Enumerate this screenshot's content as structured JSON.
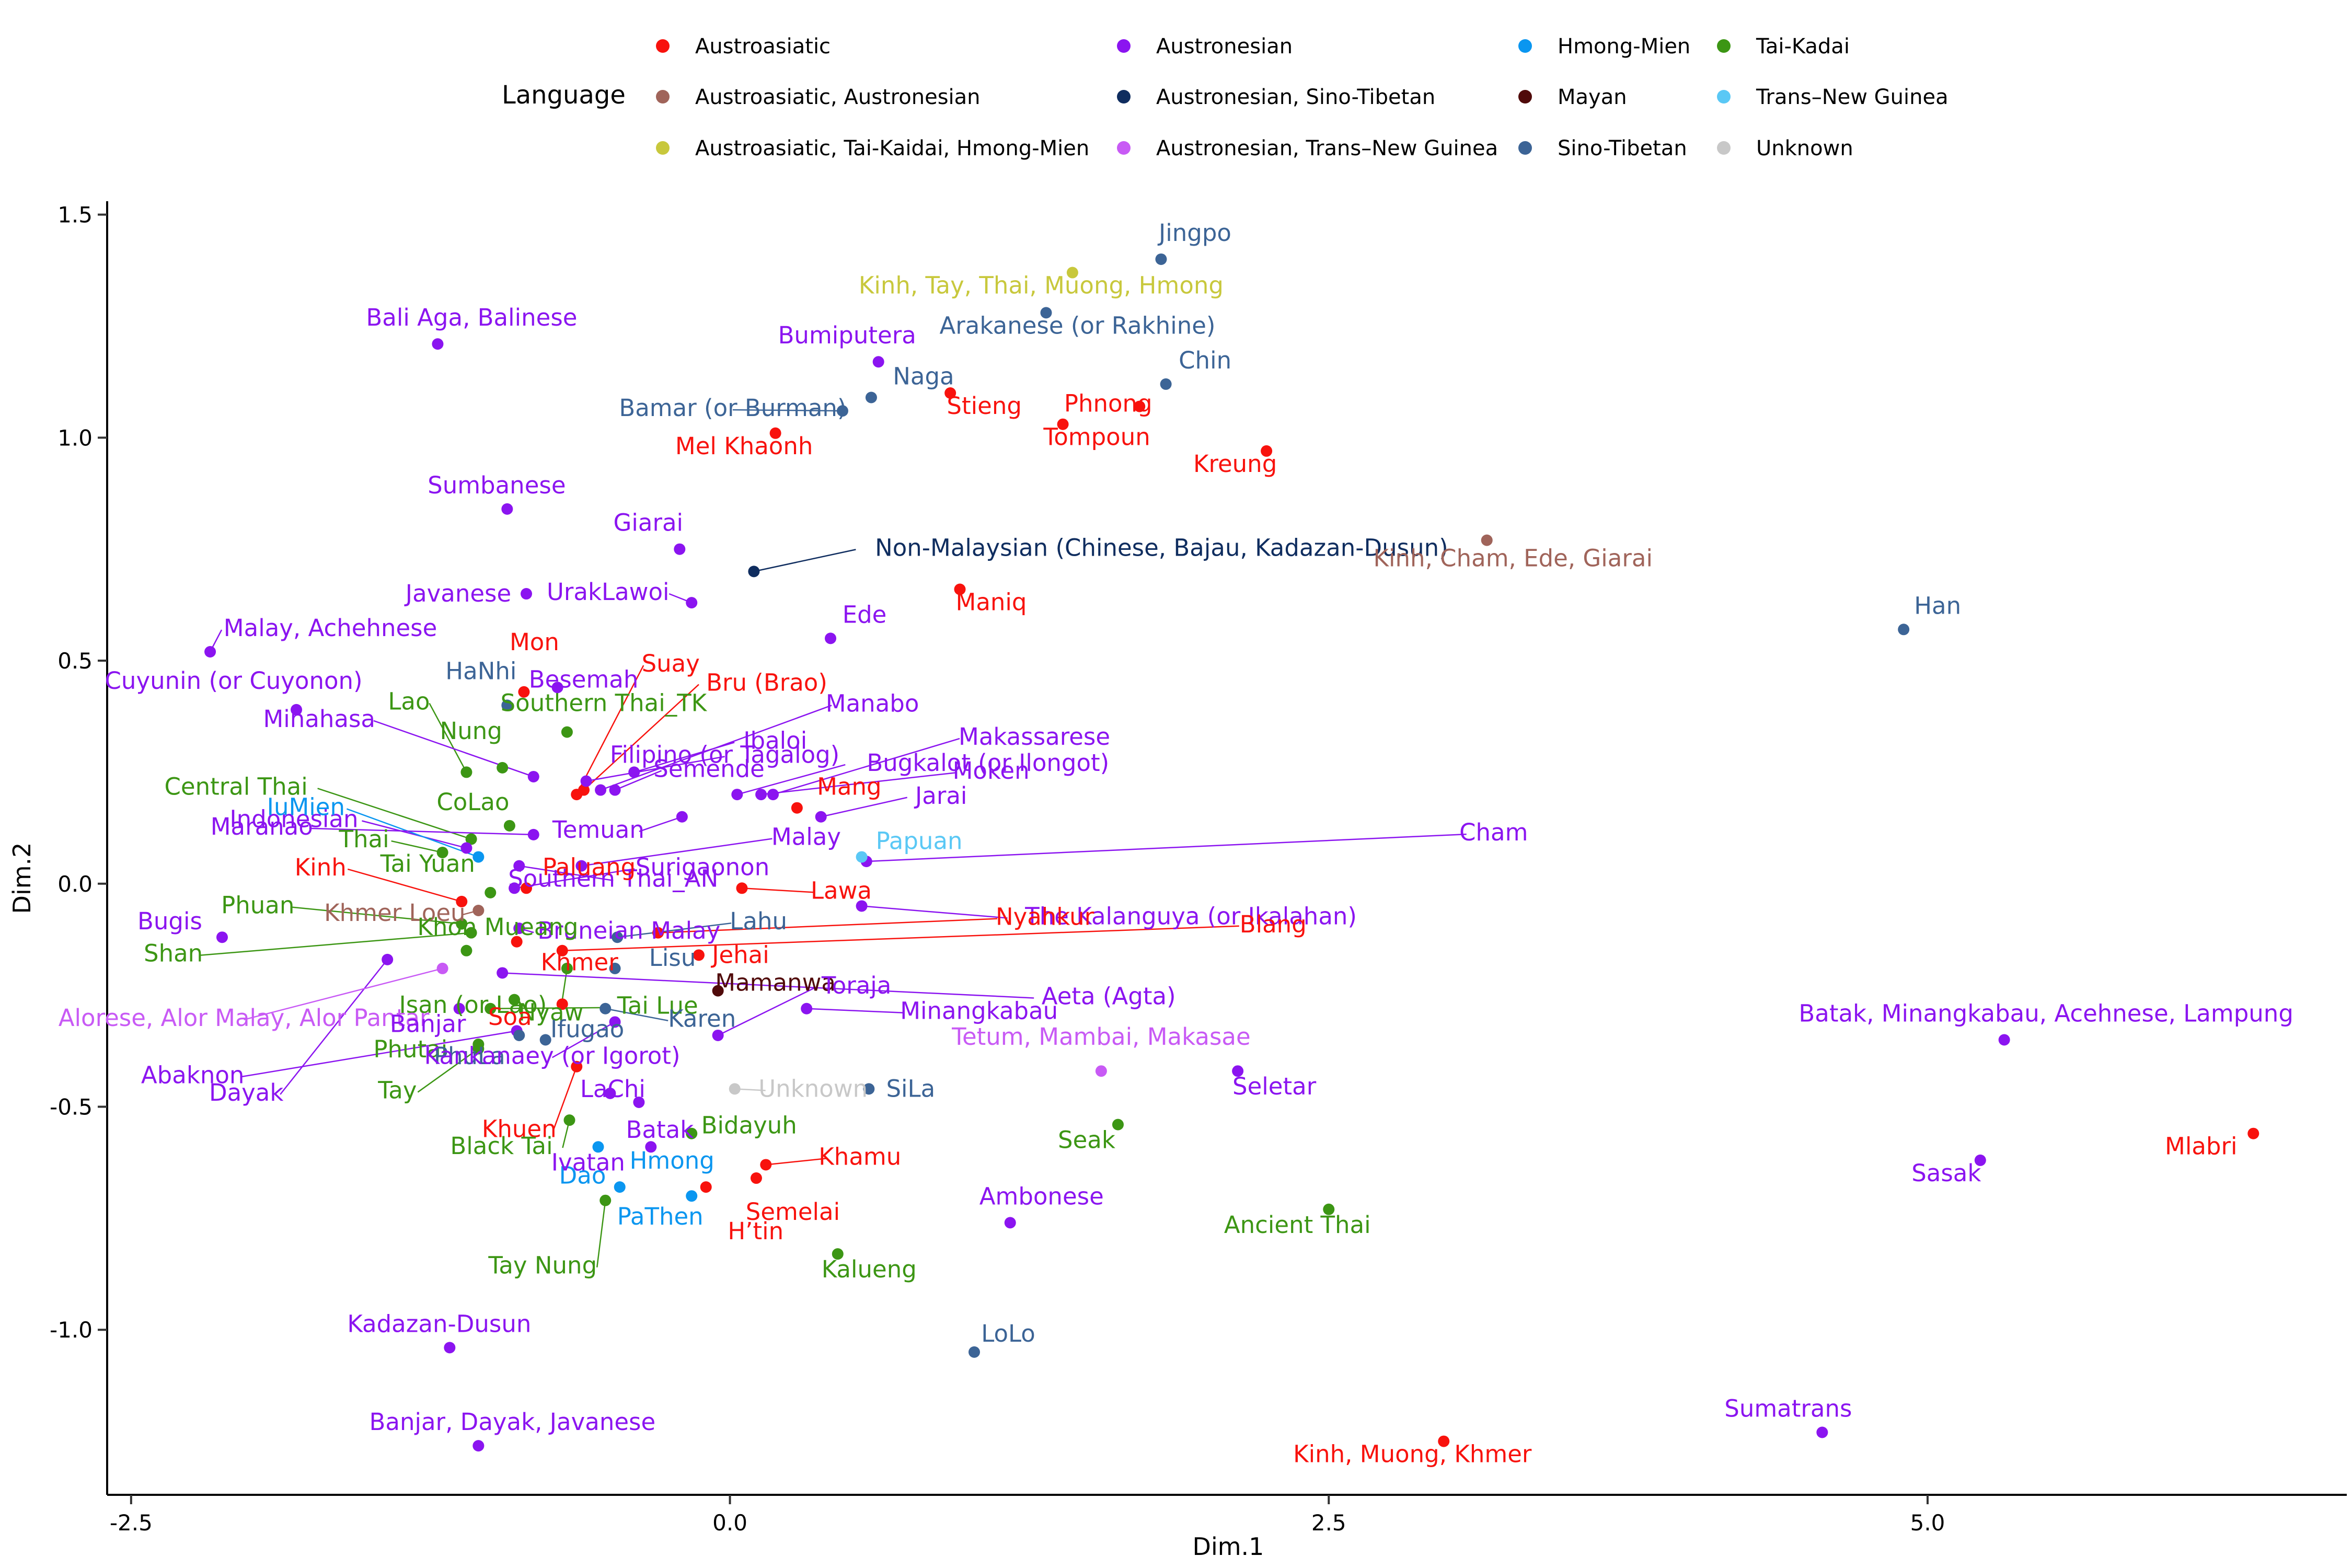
{
  "chart_data": {
    "type": "scatter",
    "xlabel": "Dim.1",
    "ylabel": "Dim.2",
    "xlim": [
      -2.6,
      6.75
    ],
    "ylim": [
      -1.37,
      1.53
    ],
    "xticks": [
      -2.5,
      0.0,
      2.5,
      5.0
    ],
    "xtick_labels": [
      "-2.5",
      "0.0",
      "2.5",
      "5.0"
    ],
    "yticks": [
      -1.0,
      -0.5,
      0.0,
      0.5,
      1.0,
      1.5
    ],
    "ytick_labels": [
      "-1.0",
      "-0.5",
      "0.0",
      "0.5",
      "1.0",
      "1.5"
    ],
    "grid": false,
    "legend": {
      "title": "Language",
      "placement": "top",
      "entries": [
        {
          "name": "Austroasiatic",
          "color": "#F8120D"
        },
        {
          "name": "Austroasiatic, Austronesian",
          "color": "#A0645A"
        },
        {
          "name": "Austroasiatic, Tai-Kaidai, Hmong-Mien",
          "color": "#C8C83C"
        },
        {
          "name": "Austronesian",
          "color": "#8B14F0"
        },
        {
          "name": "Austronesian, Sino-Tibetan",
          "color": "#0F2D5F"
        },
        {
          "name": "Austronesian, Trans–New Guinea",
          "color": "#C85AF5"
        },
        {
          "name": "Hmong-Mien",
          "color": "#0A96F0"
        },
        {
          "name": "Mayan",
          "color": "#500A0A"
        },
        {
          "name": "Sino-Tibetan",
          "color": "#3C6496"
        },
        {
          "name": "Tai-Kadai",
          "color": "#3C9614"
        },
        {
          "name": "Trans–New Guinea",
          "color": "#5AC8F5"
        },
        {
          "name": "Unknown",
          "color": "#C8C8C8"
        }
      ]
    },
    "points": [
      {
        "label": "Jingpo",
        "x": 1.8,
        "y": 1.4,
        "group": 8
      },
      {
        "label": "Kinh, Tay, Thai, Muong, Hmong",
        "x": 1.43,
        "y": 1.37,
        "group": 2
      },
      {
        "label": "Arakanese (or Rakhine)",
        "x": 1.32,
        "y": 1.28,
        "group": 8
      },
      {
        "label": "Chin",
        "x": 1.82,
        "y": 1.12,
        "group": 8
      },
      {
        "label": "Phnong",
        "x": 1.71,
        "y": 1.07,
        "group": 0
      },
      {
        "label": "Tompoun",
        "x": 1.39,
        "y": 1.03,
        "group": 0
      },
      {
        "label": "Kreung",
        "x": 2.24,
        "y": 0.97,
        "group": 0
      },
      {
        "label": "Stieng",
        "x": 0.92,
        "y": 1.1,
        "group": 0
      },
      {
        "label": "Naga",
        "x": 0.59,
        "y": 1.09,
        "group": 8
      },
      {
        "label": "Bamar (or Burman)",
        "x": 0.47,
        "y": 1.06,
        "group": 8
      },
      {
        "label": "Mel Khaonh",
        "x": 0.19,
        "y": 1.01,
        "group": 0
      },
      {
        "label": "Bumiputera",
        "x": 0.62,
        "y": 1.17,
        "group": 3
      },
      {
        "label": "Bali Aga, Balinese",
        "x": -1.22,
        "y": 1.21,
        "group": 3
      },
      {
        "label": "Sumbanese",
        "x": -0.93,
        "y": 0.84,
        "group": 3
      },
      {
        "label": "Giarai",
        "x": -0.21,
        "y": 0.75,
        "group": 3
      },
      {
        "label": "Non-Malaysian (Chinese, Bajau, Kadazan-Dusun)",
        "x": 0.1,
        "y": 0.7,
        "group": 4
      },
      {
        "label": "Kinh, Cham, Ede, Giarai",
        "x": 3.16,
        "y": 0.77,
        "group": 1
      },
      {
        "label": "Han",
        "x": 4.9,
        "y": 0.57,
        "group": 8
      },
      {
        "label": "Javanese",
        "x": -0.85,
        "y": 0.65,
        "group": 3
      },
      {
        "label": "UrakLawoi",
        "x": -0.16,
        "y": 0.63,
        "group": 3
      },
      {
        "label": "Maniq",
        "x": 0.96,
        "y": 0.66,
        "group": 0
      },
      {
        "label": "Ede",
        "x": 0.42,
        "y": 0.55,
        "group": 3
      },
      {
        "label": "Malay, Achehnese",
        "x": -2.17,
        "y": 0.52,
        "group": 3
      },
      {
        "label": "Cuyunin (or Cuyonon)",
        "x": -1.81,
        "y": 0.39,
        "group": 3
      },
      {
        "label": "Mon",
        "x": -0.86,
        "y": 0.43,
        "group": 0
      },
      {
        "label": "HaNhi",
        "x": -0.93,
        "y": 0.4,
        "group": 8
      },
      {
        "label": "Besemah",
        "x": -0.72,
        "y": 0.44,
        "group": 3
      },
      {
        "label": "Southern Thai_TK",
        "x": -0.68,
        "y": 0.34,
        "group": 9
      },
      {
        "label": "Suay",
        "x": -0.64,
        "y": 0.2,
        "group": 0
      },
      {
        "label": "Bru (Brao)",
        "x": -0.61,
        "y": 0.21,
        "group": 0
      },
      {
        "label": "Manabo",
        "x": -0.54,
        "y": 0.21,
        "group": 3
      },
      {
        "label": "Lao",
        "x": -1.1,
        "y": 0.25,
        "group": 9
      },
      {
        "label": "Nung",
        "x": -0.95,
        "y": 0.26,
        "group": 9
      },
      {
        "label": "Minahasa",
        "x": -0.82,
        "y": 0.24,
        "group": 3
      },
      {
        "label": "Filipino (or Tagalog)",
        "x": -0.6,
        "y": 0.23,
        "group": 3
      },
      {
        "label": "Ibaloi",
        "x": -0.4,
        "y": 0.25,
        "group": 3
      },
      {
        "label": "Bugkalot (or Ilongot)",
        "x": 0.03,
        "y": 0.2,
        "group": 3
      },
      {
        "label": "Makassarese",
        "x": 0.18,
        "y": 0.2,
        "group": 3
      },
      {
        "label": "Semende",
        "x": -0.48,
        "y": 0.21,
        "group": 3
      },
      {
        "label": "Central Thai",
        "x": -1.08,
        "y": 0.1,
        "group": 9
      },
      {
        "label": "Indonesian",
        "x": -1.1,
        "y": 0.08,
        "group": 3
      },
      {
        "label": "CoLao",
        "x": -0.92,
        "y": 0.13,
        "group": 9
      },
      {
        "label": "Temuan",
        "x": -0.2,
        "y": 0.15,
        "group": 3
      },
      {
        "label": "Mang",
        "x": 0.28,
        "y": 0.17,
        "group": 0
      },
      {
        "label": "Moken",
        "x": 0.13,
        "y": 0.2,
        "group": 3
      },
      {
        "label": "Jarai",
        "x": 0.38,
        "y": 0.15,
        "group": 3
      },
      {
        "label": "IuMien",
        "x": -1.05,
        "y": 0.06,
        "group": 6
      },
      {
        "label": "Maranao",
        "x": -0.82,
        "y": 0.11,
        "group": 3
      },
      {
        "label": "Thai",
        "x": -1.2,
        "y": 0.07,
        "group": 9
      },
      {
        "label": "Southern Thai_AN",
        "x": -0.88,
        "y": 0.04,
        "group": 3
      },
      {
        "label": "Cham",
        "x": 0.57,
        "y": 0.05,
        "group": 3
      },
      {
        "label": "Papuan",
        "x": 0.55,
        "y": 0.06,
        "group": 10
      },
      {
        "label": "Malay",
        "x": -0.62,
        "y": 0.04,
        "group": 3
      },
      {
        "label": "Kinh",
        "x": -1.12,
        "y": -0.04,
        "group": 0
      },
      {
        "label": "Tai Yuan",
        "x": -1.0,
        "y": -0.02,
        "group": 9
      },
      {
        "label": "Paluang",
        "x": -0.85,
        "y": -0.01,
        "group": 0
      },
      {
        "label": "Surigaonon",
        "x": -0.9,
        "y": -0.01,
        "group": 3
      },
      {
        "label": "Lawa",
        "x": 0.05,
        "y": -0.01,
        "group": 0
      },
      {
        "label": "The Kalanguya (or Ikalahan)",
        "x": 0.55,
        "y": -0.05,
        "group": 3
      },
      {
        "label": "Khmer Loeu",
        "x": -1.05,
        "y": -0.06,
        "group": 1
      },
      {
        "label": "Phuan",
        "x": -1.12,
        "y": -0.09,
        "group": 9
      },
      {
        "label": "Shan",
        "x": -1.08,
        "y": -0.11,
        "group": 9
      },
      {
        "label": "Bugis",
        "x": -2.12,
        "y": -0.12,
        "group": 3
      },
      {
        "label": "Bruneian Malay",
        "x": -0.88,
        "y": -0.1,
        "group": 3
      },
      {
        "label": "Lahu",
        "x": -0.47,
        "y": -0.12,
        "group": 8
      },
      {
        "label": "Nyahkur",
        "x": -0.3,
        "y": -0.11,
        "group": 0
      },
      {
        "label": "Khon Mueang",
        "x": -1.1,
        "y": -0.15,
        "group": 9
      },
      {
        "label": "Khmer",
        "x": -0.89,
        "y": -0.13,
        "group": 0
      },
      {
        "label": "Lisu",
        "x": -0.48,
        "y": -0.19,
        "group": 8
      },
      {
        "label": "Jehai",
        "x": -0.13,
        "y": -0.16,
        "group": 0
      },
      {
        "label": "Blang",
        "x": -0.7,
        "y": -0.15,
        "group": 0
      },
      {
        "label": "Dayak",
        "x": -1.43,
        "y": -0.17,
        "group": 3
      },
      {
        "label": "Isan (or Lao)",
        "x": -0.68,
        "y": -0.19,
        "group": 9
      },
      {
        "label": "Alorese, Alor Malay, Alor Pantar",
        "x": -1.2,
        "y": -0.19,
        "group": 5
      },
      {
        "label": "Mamanwa",
        "x": -0.05,
        "y": -0.24,
        "group": 7
      },
      {
        "label": "Aeta (Agta)",
        "x": -0.95,
        "y": -0.2,
        "group": 3
      },
      {
        "label": "Nyaw",
        "x": -0.9,
        "y": -0.26,
        "group": 9
      },
      {
        "label": "Tai Lue",
        "x": -1.0,
        "y": -0.28,
        "group": 9
      },
      {
        "label": "Banjar",
        "x": -1.13,
        "y": -0.28,
        "group": 3
      },
      {
        "label": "Soa",
        "x": -0.7,
        "y": -0.27,
        "group": 0
      },
      {
        "label": "Karen",
        "x": -0.52,
        "y": -0.28,
        "group": 8
      },
      {
        "label": "Minangkabau",
        "x": 0.32,
        "y": -0.28,
        "group": 3
      },
      {
        "label": "Abaknon",
        "x": -0.89,
        "y": -0.33,
        "group": 3
      },
      {
        "label": "Phutai",
        "x": -1.05,
        "y": -0.36,
        "group": 9
      },
      {
        "label": "Ifugao",
        "x": -0.77,
        "y": -0.35,
        "group": 8
      },
      {
        "label": "Toraja",
        "x": -0.05,
        "y": -0.34,
        "group": 3
      },
      {
        "label": "PhuLa",
        "x": -0.88,
        "y": -0.34,
        "group": 8
      },
      {
        "label": "Kankanaey (or Igorot)",
        "x": -0.48,
        "y": -0.31,
        "group": 3
      },
      {
        "label": "Tay",
        "x": -1.05,
        "y": -0.37,
        "group": 9
      },
      {
        "label": "Tetum, Mambai, Makasae",
        "x": 1.55,
        "y": -0.42,
        "group": 5
      },
      {
        "label": "Seletar",
        "x": 2.12,
        "y": -0.42,
        "group": 3
      },
      {
        "label": "Batak, Minangkabau, Acehnese, Lampung",
        "x": 5.32,
        "y": -0.35,
        "group": 3
      },
      {
        "label": "Khuen",
        "x": -0.64,
        "y": -0.41,
        "group": 0
      },
      {
        "label": "Unknown",
        "x": 0.02,
        "y": -0.46,
        "group": 11
      },
      {
        "label": "SiLa",
        "x": 0.58,
        "y": -0.46,
        "group": 8
      },
      {
        "label": "LaChi",
        "x": -0.38,
        "y": -0.49,
        "group": 3
      },
      {
        "label": "Batak",
        "x": -0.5,
        "y": -0.47,
        "group": 3
      },
      {
        "label": "Black Tai",
        "x": -0.67,
        "y": -0.53,
        "group": 9
      },
      {
        "label": "Bidayuh",
        "x": -0.16,
        "y": -0.56,
        "group": 9
      },
      {
        "label": "Dao",
        "x": -0.55,
        "y": -0.59,
        "group": 6
      },
      {
        "label": "Seak",
        "x": 1.62,
        "y": -0.54,
        "group": 9
      },
      {
        "label": "Hmong",
        "x": -0.46,
        "y": -0.68,
        "group": 6
      },
      {
        "label": "Khamu",
        "x": 0.15,
        "y": -0.63,
        "group": 0
      },
      {
        "label": "Semelai",
        "x": 0.11,
        "y": -0.66,
        "group": 0
      },
      {
        "label": "H’tin",
        "x": -0.1,
        "y": -0.68,
        "group": 0
      },
      {
        "label": "Ivatan",
        "x": -0.33,
        "y": -0.59,
        "group": 3
      },
      {
        "label": "PaThen",
        "x": -0.16,
        "y": -0.7,
        "group": 6
      },
      {
        "label": "Tay Nung",
        "x": -0.52,
        "y": -0.71,
        "group": 9
      },
      {
        "label": "Ambonese",
        "x": 1.17,
        "y": -0.76,
        "group": 3
      },
      {
        "label": "Ancient Thai",
        "x": 2.5,
        "y": -0.73,
        "group": 9
      },
      {
        "label": "Kalueng",
        "x": 0.45,
        "y": -0.83,
        "group": 9
      },
      {
        "label": "Mlabri",
        "x": 6.36,
        "y": -0.56,
        "group": 0
      },
      {
        "label": "Sasak",
        "x": 5.22,
        "y": -0.62,
        "group": 3
      },
      {
        "label": "Kadazan-Dusun",
        "x": -1.17,
        "y": -1.04,
        "group": 3
      },
      {
        "label": "LoLo",
        "x": 1.02,
        "y": -1.05,
        "group": 8
      },
      {
        "label": "Sumatrans",
        "x": 4.56,
        "y": -1.23,
        "group": 3
      },
      {
        "label": "Kinh, Muong, Khmer",
        "x": 2.98,
        "y": -1.25,
        "group": 0
      },
      {
        "label": "Banjar, Dayak, Javanese",
        "x": -1.05,
        "y": -1.26,
        "group": 3
      }
    ]
  }
}
